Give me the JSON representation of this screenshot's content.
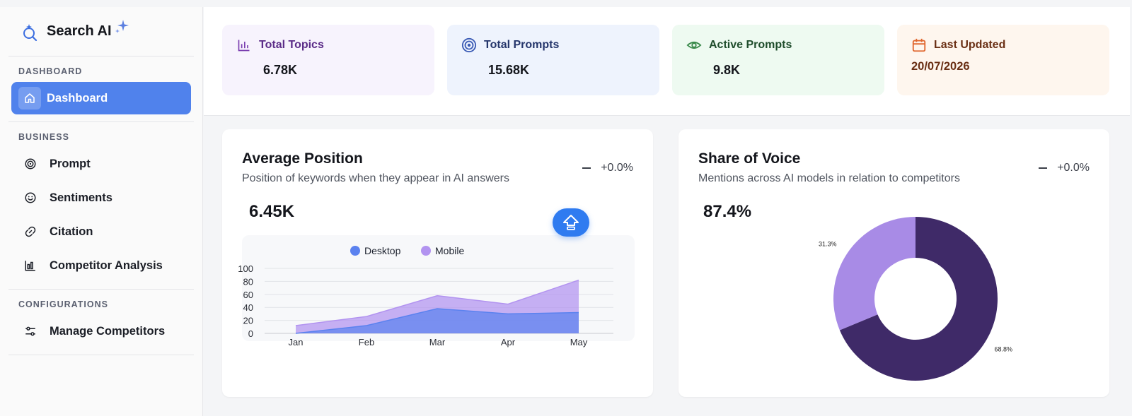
{
  "brand": {
    "name": "Search AI"
  },
  "sidebar": {
    "sections": [
      {
        "title": "DASHBOARD",
        "items": [
          {
            "label": "Dashboard",
            "icon": "home-icon",
            "active": true
          }
        ]
      },
      {
        "title": "BUSINESS",
        "items": [
          {
            "label": "Prompt",
            "icon": "target-icon"
          },
          {
            "label": "Sentiments",
            "icon": "smile-icon"
          },
          {
            "label": "Citation",
            "icon": "link-icon"
          },
          {
            "label": "Competitor Analysis",
            "icon": "bar-chart-icon"
          }
        ]
      },
      {
        "title": "CONFIGURATIONS",
        "items": [
          {
            "label": "Manage Competitors",
            "icon": "sliders-icon"
          }
        ]
      }
    ]
  },
  "stats": [
    {
      "label": "Total Topics",
      "value": "6.78K",
      "icon": "bar-chart-icon",
      "color": "#7b3fb0"
    },
    {
      "label": "Total Prompts",
      "value": "15.68K",
      "icon": "target-icon",
      "color": "#3b5bb5"
    },
    {
      "label": "Active Prompts",
      "value": "9.8K",
      "icon": "eye-icon",
      "color": "#3a8a4b"
    },
    {
      "label": "Last Updated",
      "value": "20/07/2026",
      "icon": "calendar-icon",
      "color": "#e0672e"
    }
  ],
  "avg_position": {
    "title": "Average Position",
    "subtitle": "Position of keywords when they appear in AI answers",
    "change": "+0.0%",
    "value": "6.45K"
  },
  "share_of_voice": {
    "title": "Share of Voice",
    "subtitle": "Mentions across AI models in relation to competitors",
    "change": "+0.0%",
    "value": "87.4%"
  },
  "chart_data": [
    {
      "type": "area",
      "categories": [
        "Jan",
        "Feb",
        "Mar",
        "Apr",
        "May"
      ],
      "series": [
        {
          "name": "Desktop",
          "values": [
            0,
            12,
            38,
            30,
            32
          ],
          "color": "#5b82ef"
        },
        {
          "name": "Mobile",
          "values": [
            12,
            26,
            58,
            45,
            82
          ],
          "color": "#b293f0"
        }
      ],
      "stacked": false,
      "ylim": [
        0,
        100
      ],
      "yticks": [
        0,
        20,
        40,
        60,
        80,
        100
      ],
      "legend": "top-center",
      "grid": true
    },
    {
      "type": "pie",
      "donut": true,
      "slices": [
        {
          "label": "68.8%",
          "value": 68.8,
          "color": "#3f2a68"
        },
        {
          "label": "31.3%",
          "value": 31.3,
          "color": "#a88be6"
        }
      ]
    }
  ]
}
